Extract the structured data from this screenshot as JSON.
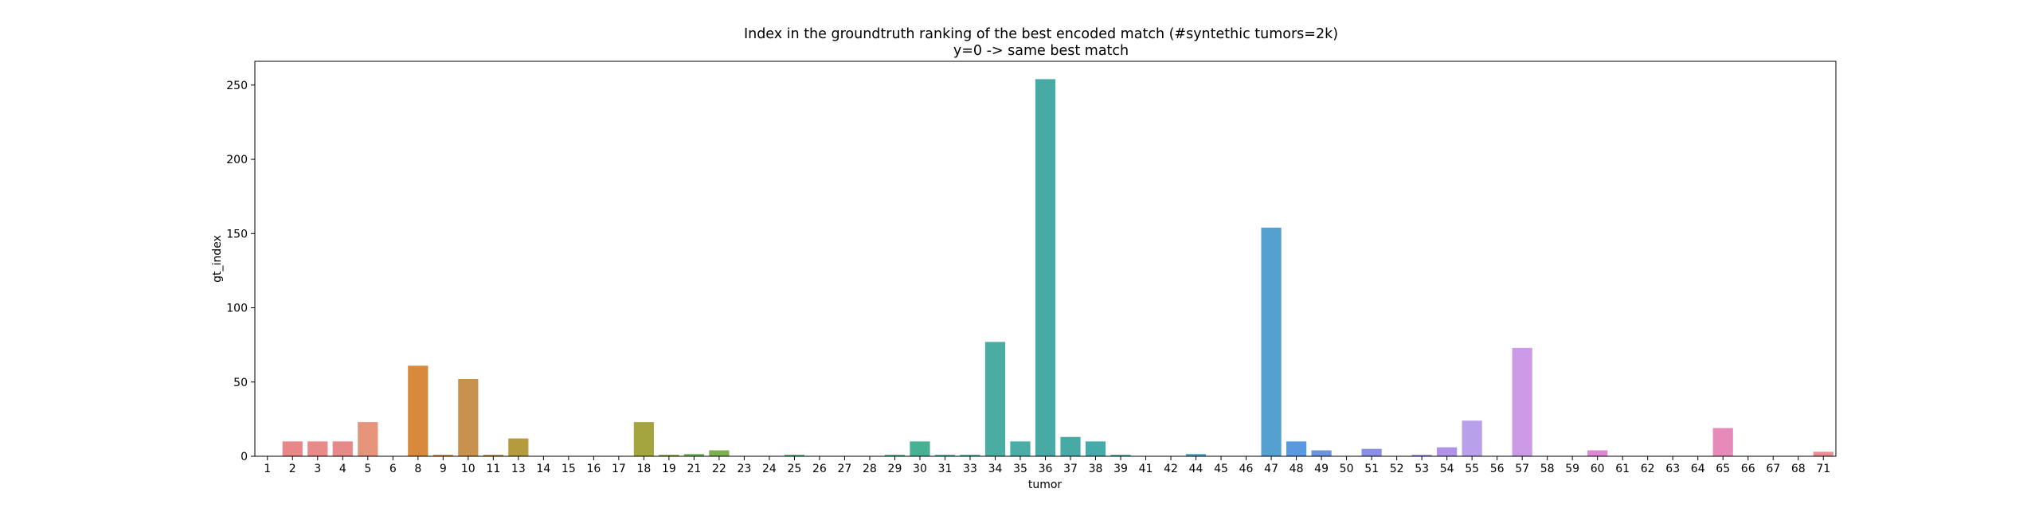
{
  "chart_data": {
    "type": "bar",
    "title": "Index in the groundtruth ranking of the best encoded match (#syntethic tumors=2k)",
    "subtitle": "y=0 -> same best match",
    "xlabel": "tumor",
    "ylabel": "gt_index",
    "ylim": [
      0,
      266
    ],
    "yticks": [
      0,
      50,
      100,
      150,
      200,
      250
    ],
    "ytick_labels": [
      "0",
      "50",
      "100",
      "150",
      "200",
      "250"
    ],
    "grid": false,
    "categories": [
      "1",
      "2",
      "3",
      "4",
      "5",
      "6",
      "8",
      "9",
      "10",
      "11",
      "13",
      "14",
      "15",
      "16",
      "17",
      "18",
      "19",
      "21",
      "22",
      "23",
      "24",
      "25",
      "26",
      "27",
      "28",
      "29",
      "30",
      "31",
      "33",
      "34",
      "35",
      "36",
      "37",
      "38",
      "39",
      "41",
      "42",
      "44",
      "45",
      "46",
      "47",
      "48",
      "49",
      "50",
      "51",
      "52",
      "53",
      "54",
      "55",
      "56",
      "57",
      "58",
      "59",
      "60",
      "61",
      "62",
      "63",
      "64",
      "65",
      "66",
      "67",
      "68",
      "71"
    ],
    "values": [
      0,
      10,
      10,
      10,
      23,
      0,
      61,
      1,
      52,
      1,
      12,
      0,
      0,
      0,
      0,
      23,
      1,
      1.5,
      4,
      0,
      0,
      1,
      0,
      0,
      0,
      1,
      10,
      1,
      1,
      77,
      10,
      254,
      13,
      10,
      1,
      0,
      0,
      1.5,
      0,
      0,
      154,
      10,
      4,
      0,
      5,
      0,
      1,
      6,
      24,
      0,
      73,
      0,
      0,
      4,
      0,
      0,
      0,
      0,
      19,
      0,
      0,
      0,
      3
    ],
    "colors": [
      "#e8858a",
      "#e8878a",
      "#e8898a",
      "#e6898a",
      "#e6957a",
      "#e58d5e",
      "#d9893b",
      "#ca8c3f",
      "#c8914d",
      "#b5913f",
      "#b59a3e",
      "#a89b3a",
      "#a39d3d",
      "#9ba43f",
      "#93a84a",
      "#a4a53e",
      "#8fa83a",
      "#6cb25b",
      "#7ab04e",
      "#5db45a",
      "#4db56a",
      "#4fb374",
      "#4db57e",
      "#4bb287",
      "#49b08e",
      "#4bb095",
      "#47b193",
      "#48b29d",
      "#49b1a1",
      "#4aada1",
      "#4aada6",
      "#48aaa4",
      "#47aaa5",
      "#46a9aa",
      "#48a8ae",
      "#49a6b3",
      "#4aa4b8",
      "#4ca2bf",
      "#4e9fc6",
      "#519cce",
      "#53a0d1",
      "#5a99df",
      "#6b93e0",
      "#7d8fe3",
      "#8a8fe5",
      "#9393e8",
      "#a48fe8",
      "#b092e9",
      "#b9a0ea",
      "#c18ee5",
      "#cc9ae6",
      "#d488df",
      "#dc87d8",
      "#e087d4",
      "#e48ccb",
      "#e58bc3",
      "#e58bbb",
      "#e78ab0",
      "#e78ab9",
      "#e78aa8",
      "#e88aa0",
      "#e98a98",
      "#ea8a92"
    ]
  }
}
